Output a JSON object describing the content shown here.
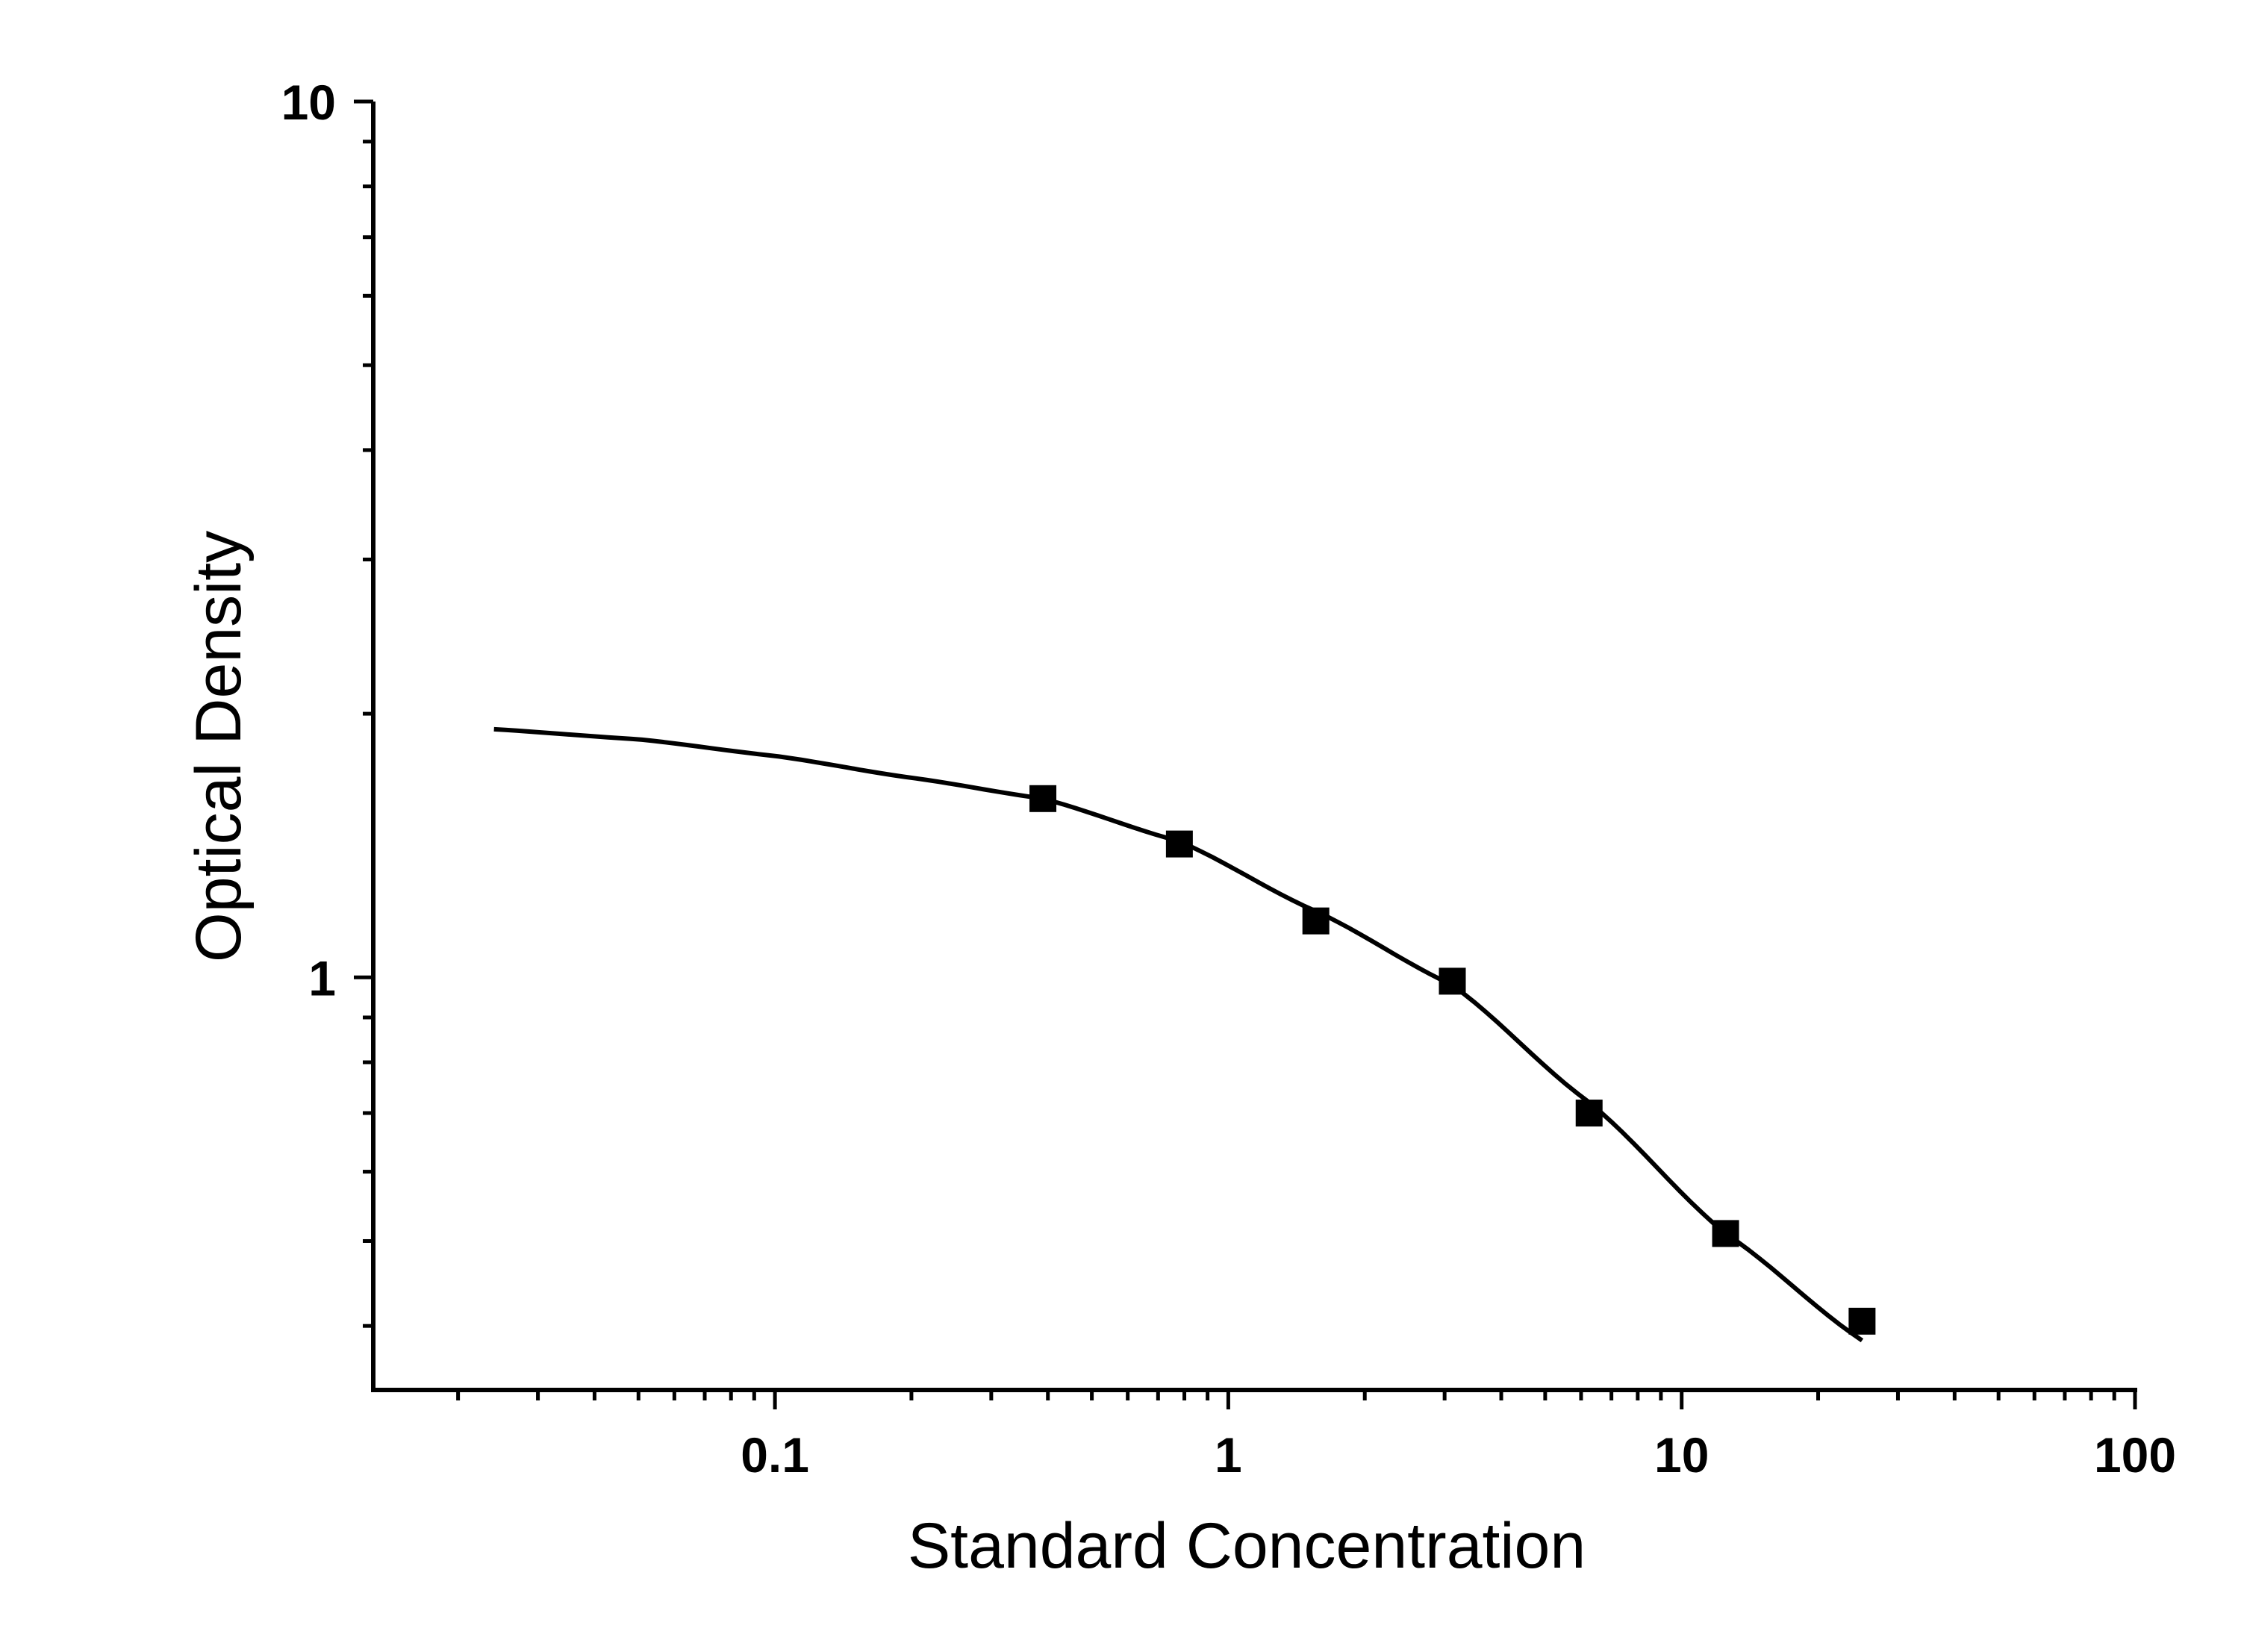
{
  "chart_data": {
    "type": "scatter",
    "title": "",
    "xlabel": "Standard Concentration",
    "ylabel": "Optical Density",
    "x_scale": "log",
    "y_scale": "log",
    "xlim": [
      0.013,
      100
    ],
    "ylim": [
      0.338,
      10
    ],
    "x_ticks": [
      {
        "value": 0.1,
        "label": "0.1"
      },
      {
        "value": 1,
        "label": "1"
      },
      {
        "value": 10,
        "label": "10"
      },
      {
        "value": 100,
        "label": "100"
      }
    ],
    "y_ticks": [
      {
        "value": 1,
        "label": "1"
      },
      {
        "value": 10,
        "label": "10"
      }
    ],
    "grid": false,
    "legend": "none",
    "marker": "square",
    "marker_color": "#000000",
    "line_color": "#000000",
    "series": [
      {
        "type": "scatter",
        "x": [
          0.39,
          0.78,
          1.56,
          3.12,
          6.25,
          12.5,
          25
        ],
        "y": [
          1.6,
          1.42,
          1.16,
          0.99,
          0.7,
          0.51,
          0.405
        ]
      },
      {
        "type": "line",
        "x": [
          0.024,
          0.05,
          0.1,
          0.2,
          0.39,
          0.78,
          1.56,
          3.12,
          6.25,
          12.5,
          25
        ],
        "y": [
          1.92,
          1.87,
          1.79,
          1.69,
          1.6,
          1.43,
          1.19,
          0.98,
          0.72,
          0.51,
          0.385
        ]
      }
    ]
  }
}
